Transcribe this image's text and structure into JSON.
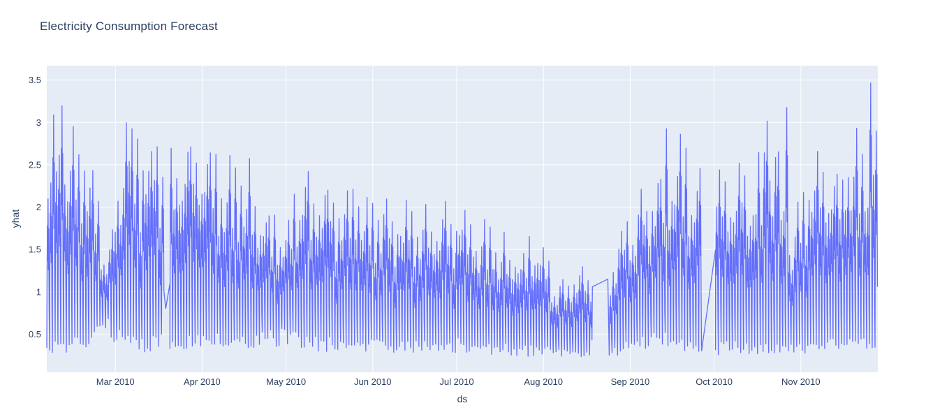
{
  "figure": {
    "title": "Electricity Consumption Forecast"
  },
  "chart_data": {
    "type": "line",
    "title": "Electricity Consumption Forecast",
    "xlabel": "ds",
    "ylabel": "yhat",
    "legend": "none",
    "grid": true,
    "colors": {
      "line": "#636efa",
      "plot_background": "#e5ecf6",
      "paper_background": "#ffffff",
      "grid_line": "#ffffff",
      "text": "#2a3f5f"
    },
    "x_axis": {
      "unit": "days from series start (early Feb 2010)",
      "range": [
        0,
        297
      ],
      "ticks": [
        {
          "label": "Mar 2010",
          "day": 24.5
        },
        {
          "label": "Apr 2010",
          "day": 55.5
        },
        {
          "label": "May 2010",
          "day": 85.5
        },
        {
          "label": "Jun 2010",
          "day": 116.5
        },
        {
          "label": "Jul 2010",
          "day": 146.5
        },
        {
          "label": "Aug 2010",
          "day": 177.5
        },
        {
          "label": "Sep 2010",
          "day": 208.5
        },
        {
          "label": "Oct 2010",
          "day": 238.5
        },
        {
          "label": "Nov 2010",
          "day": 269.5
        }
      ]
    },
    "y_axis": {
      "range": [
        0.05,
        3.67
      ],
      "ticks": [
        {
          "label": "0.5",
          "value": 0.5
        },
        {
          "label": "1",
          "value": 1.0
        },
        {
          "label": "1.5",
          "value": 1.5
        },
        {
          "label": "2",
          "value": 2.0
        },
        {
          "label": "2.5",
          "value": 2.5
        },
        {
          "label": "3",
          "value": 3.0
        },
        {
          "label": "3.5",
          "value": 3.5
        }
      ]
    },
    "series": [
      {
        "name": "yhat",
        "color": "#636efa",
        "line_width": 1.3,
        "n_days": 297,
        "week_step": 7,
        "week_hi": [
          3.05,
          3.2,
          2.95,
          1.5,
          2.95,
          2.9,
          2.85,
          2.93,
          2.9,
          2.55,
          2.77,
          2.1,
          1.85,
          2.47,
          2.35,
          2.3,
          2.37,
          2.1,
          2.1,
          2.05,
          2.0,
          2.25,
          1.9,
          1.75,
          1.6,
          1.7,
          1.25,
          1.3,
          1.3,
          1.6,
          2.1,
          2.5,
          2.93,
          2.7,
          2.4,
          2.55,
          2.5,
          3.02,
          1.75,
          2.95,
          2.6,
          2.95,
          2.9
        ],
        "week_lo": [
          0.35,
          0.35,
          0.4,
          0.55,
          0.4,
          0.35,
          0.4,
          0.4,
          0.4,
          0.4,
          0.4,
          0.4,
          0.45,
          0.4,
          0.35,
          0.4,
          0.35,
          0.35,
          0.35,
          0.35,
          0.35,
          0.35,
          0.3,
          0.3,
          0.3,
          0.28,
          0.28,
          0.26,
          0.28,
          0.3,
          0.35,
          0.4,
          0.4,
          0.35,
          0.3,
          0.35,
          0.3,
          0.3,
          0.35,
          0.3,
          0.35,
          0.35,
          0.4
        ],
        "weekday_factors": [
          0.66,
          0.8,
          1.0,
          0.7,
          0.9,
          0.58,
          0.74
        ],
        "daily_profile": [
          [
            0.0,
            0.0
          ],
          [
            0.1,
            0.5
          ],
          [
            0.2,
            0.82
          ],
          [
            0.33,
            0.58
          ],
          [
            0.45,
            1.0
          ],
          [
            0.58,
            0.52
          ],
          [
            0.7,
            0.8
          ],
          [
            0.85,
            0.28
          ]
        ],
        "jitter": 0.28,
        "spikes": [
          {
            "day": 5,
            "value": 3.2
          },
          {
            "day": 28,
            "value": 3.0
          },
          {
            "day": 221,
            "value": 2.93
          },
          {
            "day": 257,
            "value": 3.02
          },
          {
            "day": 264,
            "value": 3.18
          },
          {
            "day": 294,
            "value": 3.47
          }
        ],
        "gaps": [
          {
            "from_day": 42.5,
            "to_day": 44,
            "from_value": 0.8,
            "to_value": 1.1
          },
          {
            "from_day": 195,
            "to_day": 200.5,
            "from_value": 1.06,
            "to_value": 1.15
          },
          {
            "from_day": 234,
            "to_day": 239,
            "from_value": 0.3,
            "to_value": 1.5
          }
        ]
      }
    ]
  }
}
